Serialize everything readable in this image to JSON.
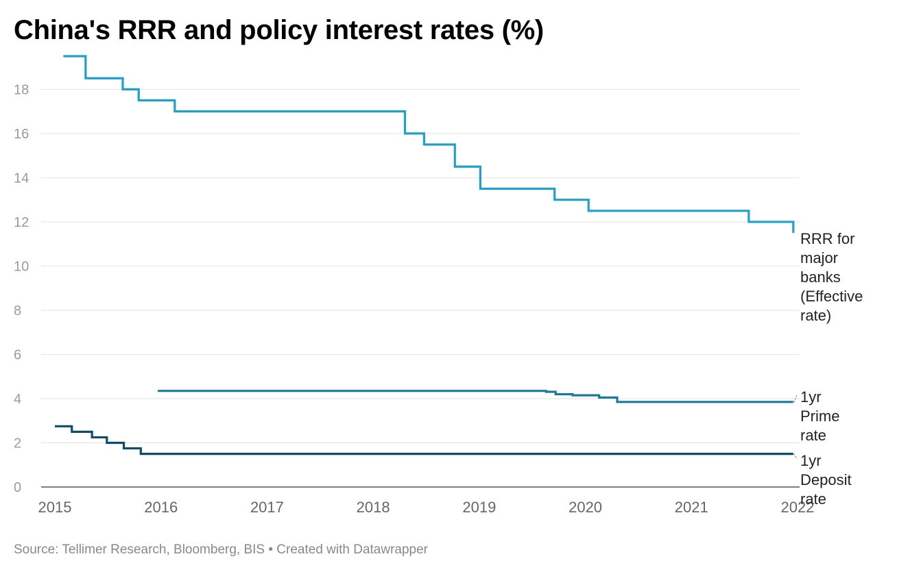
{
  "title": "China's RRR and policy interest rates (%)",
  "source": "Source: Tellimer Research, Bloomberg, BIS • Created with Datawrapper",
  "chart_data": {
    "type": "line",
    "title": "China's RRR and policy interest rates (%)",
    "xlim": [
      2015,
      2022
    ],
    "ylim": [
      0,
      19.5
    ],
    "y_ticks": [
      0,
      2,
      4,
      6,
      8,
      10,
      12,
      14,
      16,
      18
    ],
    "x_ticks": [
      2015,
      2016,
      2017,
      2018,
      2019,
      2020,
      2021,
      2022
    ],
    "grid": true,
    "series": [
      {
        "name": "RRR for major banks (Effective rate)",
        "label_lines": [
          "RRR for",
          "major",
          "banks",
          "(Effective",
          "rate)"
        ],
        "color": "#20a0cc",
        "step": true,
        "x": [
          2015.08,
          2015.29,
          2015.64,
          2015.79,
          2016.13,
          2018.3,
          2018.48,
          2018.77,
          2019.01,
          2019.71,
          2020.03,
          2021.54,
          2021.94,
          2021.96
        ],
        "y": [
          19.5,
          18.5,
          18.0,
          17.5,
          17.0,
          16.0,
          15.5,
          14.5,
          13.5,
          13.0,
          12.5,
          12.0,
          12.0,
          11.5
        ]
      },
      {
        "name": "1yr Prime rate",
        "label_lines": [
          "1yr",
          "Prime",
          "rate"
        ],
        "color": "#1a7aa0",
        "step": true,
        "x": [
          2015.97,
          2019.63,
          2019.72,
          2019.88,
          2020.13,
          2020.3,
          2021.96
        ],
        "y": [
          4.35,
          4.31,
          4.2,
          4.15,
          4.05,
          3.85,
          3.85
        ]
      },
      {
        "name": "1yr Deposit rate",
        "label_lines": [
          "1yr",
          "Deposit",
          "rate"
        ],
        "color": "#0e4d6e",
        "step": true,
        "x": [
          2015.0,
          2015.16,
          2015.35,
          2015.49,
          2015.65,
          2015.81,
          2021.96
        ],
        "y": [
          2.75,
          2.5,
          2.25,
          2.0,
          1.75,
          1.5,
          1.5
        ]
      }
    ]
  }
}
